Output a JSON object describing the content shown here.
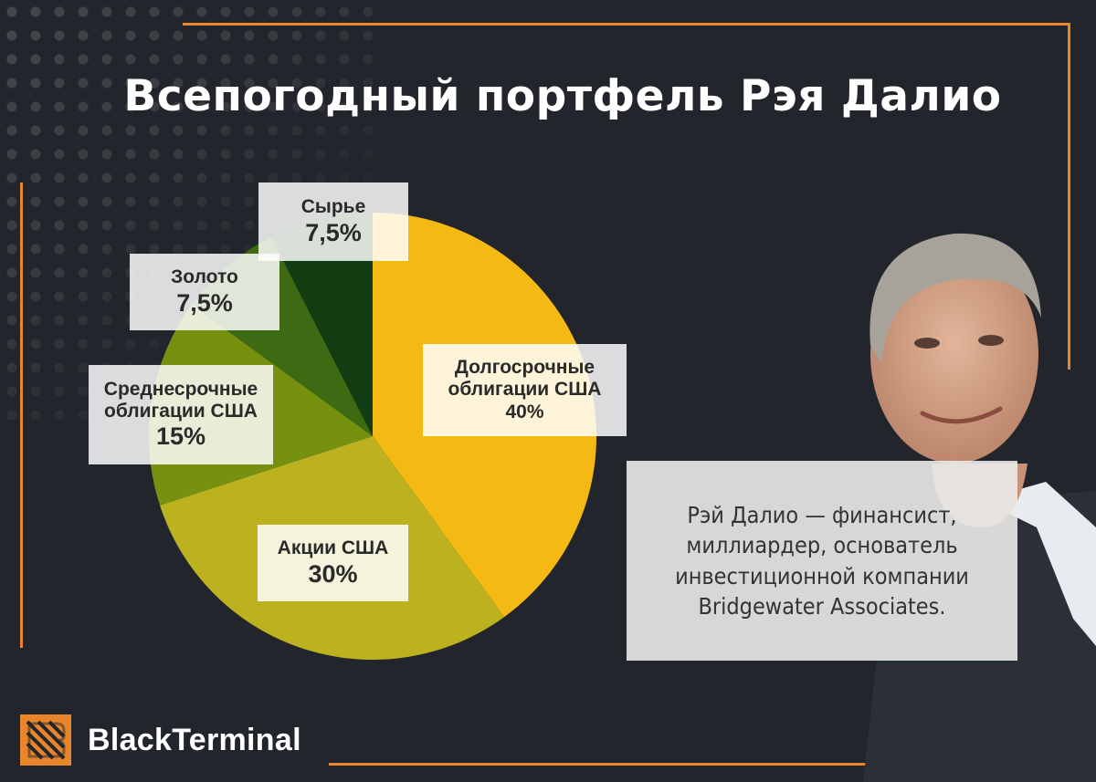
{
  "title": "Всепогодный портфель Рэя Далио",
  "chart_data": {
    "type": "pie",
    "title": "Всепогодный портфель Рэя Далио",
    "unit": "%",
    "slices": [
      {
        "name": "Долгосрочные облигации США",
        "lines": [
          "Долгосрочные",
          "облигации США"
        ],
        "value": 40,
        "label": "40%",
        "color": "#f5b914"
      },
      {
        "name": "Акции США",
        "lines": [
          "Акции США"
        ],
        "value": 30,
        "label": "30%",
        "color": "#bcb21f"
      },
      {
        "name": "Среднесрочные облигации США",
        "lines": [
          "Среднесрочные",
          "облигации США"
        ],
        "value": 15,
        "label": "15%",
        "color": "#76900f"
      },
      {
        "name": "Золото",
        "lines": [
          "Золото"
        ],
        "value": 7.5,
        "label": "7,5%",
        "color": "#3d6a12"
      },
      {
        "name": "Сырье",
        "lines": [
          "Сырье"
        ],
        "value": 7.5,
        "label": "7,5%",
        "color": "#123d12"
      }
    ]
  },
  "bio": {
    "lines": [
      "Рэй Далио — финансист,",
      "миллиардер, основатель",
      "инвестиционной компании",
      "Bridgewater Associates."
    ]
  },
  "brand": {
    "name": "BlackTerminal",
    "accent": "#e9862b"
  }
}
